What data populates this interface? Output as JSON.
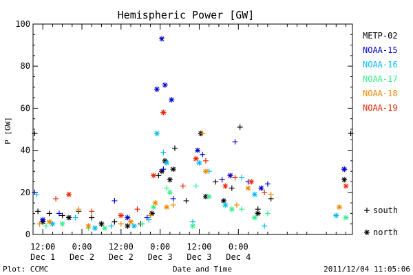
{
  "chart_data": {
    "type": "scatter",
    "title": "Hemispheric Power [GW]",
    "ylabel": "P [GW]",
    "xlabel": "Date and Time",
    "ylim": [
      0,
      100
    ],
    "y_ticks": [
      0,
      20,
      40,
      60,
      80,
      100
    ],
    "x_range": [
      "2011-12-01T09:00",
      "2011-12-05T11:00"
    ],
    "x_ticks": [
      {
        "t": "2011-12-01T12:00",
        "time": "12:00",
        "date": "Dec 1"
      },
      {
        "t": "2011-12-02T00:00",
        "time": "0:00",
        "date": "Dec 2"
      },
      {
        "t": "2011-12-02T12:00",
        "time": "12:00",
        "date": "Dec 2"
      },
      {
        "t": "2011-12-03T00:00",
        "time": "0:00",
        "date": "Dec 3"
      },
      {
        "t": "2011-12-03T12:00",
        "time": "12:00",
        "date": "Dec 3"
      },
      {
        "t": "2011-12-04T00:00",
        "time": "0:00",
        "date": "Dec 4"
      }
    ],
    "grid": false,
    "legend_position": "right",
    "series": [
      {
        "name": "METP-02",
        "color": "#000000",
        "south": [
          [
            "2011-12-01T09:30",
            48
          ],
          [
            "2011-12-01T10:30",
            11
          ],
          [
            "2011-12-01T14:00",
            10
          ],
          [
            "2011-12-01T18:00",
            9
          ],
          [
            "2011-12-01T23:00",
            11
          ],
          [
            "2011-12-02T03:00",
            8
          ],
          [
            "2011-12-02T10:00",
            6
          ],
          [
            "2011-12-02T18:00",
            5
          ],
          [
            "2011-12-02T23:30",
            28
          ],
          [
            "2011-12-03T04:30",
            41
          ],
          [
            "2011-12-03T08:00",
            16
          ],
          [
            "2011-12-03T12:30",
            48
          ],
          [
            "2011-12-03T17:00",
            25
          ],
          [
            "2011-12-03T22:00",
            22
          ],
          [
            "2011-12-04T00:30",
            51
          ],
          [
            "2011-12-04T06:00",
            12
          ],
          [
            "2011-12-04T10:00",
            17
          ],
          [
            "2011-12-05T10:30",
            48
          ]
        ],
        "north": [
          [
            "2011-12-01T12:00",
            6
          ],
          [
            "2011-12-01T20:00",
            8
          ],
          [
            "2011-12-02T06:00",
            5
          ],
          [
            "2011-12-02T14:00",
            4
          ],
          [
            "2011-12-02T21:30",
            10
          ],
          [
            "2011-12-03T00:30",
            30
          ],
          [
            "2011-12-03T01:30",
            35
          ],
          [
            "2011-12-03T03:00",
            26
          ],
          [
            "2011-12-03T04:00",
            31
          ],
          [
            "2011-12-03T12:30",
            48
          ],
          [
            "2011-12-03T14:00",
            18
          ],
          [
            "2011-12-03T19:30",
            16
          ],
          [
            "2011-12-04T06:00",
            10
          ],
          [
            "2011-12-05T08:30",
            26
          ]
        ]
      },
      {
        "name": "NOAA-15",
        "color": "#0000cc",
        "south": [
          [
            "2011-12-01T09:30",
            20
          ],
          [
            "2011-12-01T17:00",
            10
          ],
          [
            "2011-12-02T10:00",
            16
          ],
          [
            "2011-12-02T20:00",
            8
          ],
          [
            "2011-12-03T01:00",
            31
          ],
          [
            "2011-12-03T04:00",
            17
          ],
          [
            "2011-12-03T13:00",
            38
          ],
          [
            "2011-12-03T19:00",
            26
          ],
          [
            "2011-12-03T23:00",
            44
          ],
          [
            "2011-12-04T03:00",
            25
          ],
          [
            "2011-12-04T09:00",
            24
          ],
          [
            "2011-12-05T08:30",
            31
          ]
        ],
        "north": [
          [
            "2011-12-01T12:00",
            7
          ],
          [
            "2011-12-02T14:00",
            8
          ],
          [
            "2011-12-02T23:00",
            69
          ],
          [
            "2011-12-03T00:30",
            93
          ],
          [
            "2011-12-03T01:30",
            71
          ],
          [
            "2011-12-03T03:30",
            64
          ],
          [
            "2011-12-03T11:30",
            40
          ],
          [
            "2011-12-03T21:30",
            28
          ],
          [
            "2011-12-04T07:00",
            22
          ],
          [
            "2011-12-05T08:30",
            31
          ]
        ]
      },
      {
        "name": "NOAA-16",
        "color": "#00bbee",
        "south": [
          [
            "2011-12-01T10:00",
            19
          ],
          [
            "2011-12-01T22:00",
            8
          ],
          [
            "2011-12-02T09:00",
            4
          ],
          [
            "2011-12-02T20:30",
            7
          ],
          [
            "2011-12-03T01:00",
            39
          ],
          [
            "2011-12-03T10:00",
            6
          ],
          [
            "2011-12-03T15:00",
            30
          ],
          [
            "2011-12-04T01:00",
            27
          ],
          [
            "2011-12-04T08:00",
            4
          ]
        ],
        "north": [
          [
            "2011-12-01T15:00",
            5
          ],
          [
            "2011-12-02T04:00",
            3
          ],
          [
            "2011-12-02T16:00",
            4
          ],
          [
            "2011-12-02T23:00",
            48
          ],
          [
            "2011-12-03T02:00",
            34
          ],
          [
            "2011-12-03T12:00",
            34
          ],
          [
            "2011-12-03T20:00",
            14
          ],
          [
            "2011-12-04T05:00",
            19
          ],
          [
            "2011-12-05T06:00",
            9
          ]
        ]
      },
      {
        "name": "NOAA-17",
        "color": "#33ee88",
        "south": [
          [
            "2011-12-01T13:00",
            4
          ],
          [
            "2011-12-02T02:00",
            3
          ],
          [
            "2011-12-02T18:30",
            5
          ],
          [
            "2011-12-03T02:00",
            22
          ],
          [
            "2011-12-03T11:00",
            23
          ],
          [
            "2011-12-04T01:00",
            12
          ],
          [
            "2011-12-04T09:00",
            10
          ]
        ],
        "north": [
          [
            "2011-12-01T18:00",
            5
          ],
          [
            "2011-12-02T07:00",
            3
          ],
          [
            "2011-12-02T22:00",
            13
          ],
          [
            "2011-12-03T03:00",
            20
          ],
          [
            "2011-12-03T10:00",
            4
          ],
          [
            "2011-12-03T15:00",
            18
          ],
          [
            "2011-12-03T22:00",
            12
          ],
          [
            "2011-12-04T05:00",
            8
          ],
          [
            "2011-12-05T09:00",
            8
          ]
        ]
      },
      {
        "name": "NOAA-18",
        "color": "#ee8800",
        "south": [
          [
            "2011-12-01T11:00",
            5
          ],
          [
            "2011-12-01T23:00",
            12
          ],
          [
            "2011-12-02T12:00",
            5
          ],
          [
            "2011-12-02T21:00",
            9
          ],
          [
            "2011-12-03T04:00",
            14
          ],
          [
            "2011-12-03T13:00",
            48
          ],
          [
            "2011-12-03T23:30",
            14
          ],
          [
            "2011-12-04T10:00",
            19
          ]
        ],
        "north": [
          [
            "2011-12-01T14:00",
            6
          ],
          [
            "2011-12-02T02:00",
            4
          ],
          [
            "2011-12-02T15:00",
            6
          ],
          [
            "2011-12-02T22:30",
            15
          ],
          [
            "2011-12-03T02:00",
            13
          ],
          [
            "2011-12-03T14:00",
            30
          ],
          [
            "2011-12-04T03:00",
            22
          ],
          [
            "2011-12-05T07:00",
            13
          ]
        ]
      },
      {
        "name": "NOAA-19",
        "color": "#ee2200",
        "south": [
          [
            "2011-12-01T16:00",
            17
          ],
          [
            "2011-12-02T03:00",
            11
          ],
          [
            "2011-12-02T17:00",
            12
          ],
          [
            "2011-12-03T01:00",
            58
          ],
          [
            "2011-12-03T07:00",
            23
          ],
          [
            "2011-12-03T14:00",
            35
          ],
          [
            "2011-12-03T23:00",
            27
          ],
          [
            "2011-12-04T08:00",
            20
          ]
        ],
        "north": [
          [
            "2011-12-01T20:00",
            19
          ],
          [
            "2011-12-02T12:00",
            9
          ],
          [
            "2011-12-02T22:00",
            28
          ],
          [
            "2011-12-03T01:00",
            58
          ],
          [
            "2011-12-03T11:00",
            36
          ],
          [
            "2011-12-03T20:00",
            23
          ],
          [
            "2011-12-04T04:00",
            25
          ],
          [
            "2011-12-05T09:00",
            23
          ]
        ]
      }
    ],
    "marker_legend": [
      {
        "symbol": "+",
        "label": "south"
      },
      {
        "symbol": "*",
        "label": "north"
      }
    ],
    "footer_left": "Plot: CCMC",
    "footer_right": "2011/12/04 11:05:06"
  }
}
